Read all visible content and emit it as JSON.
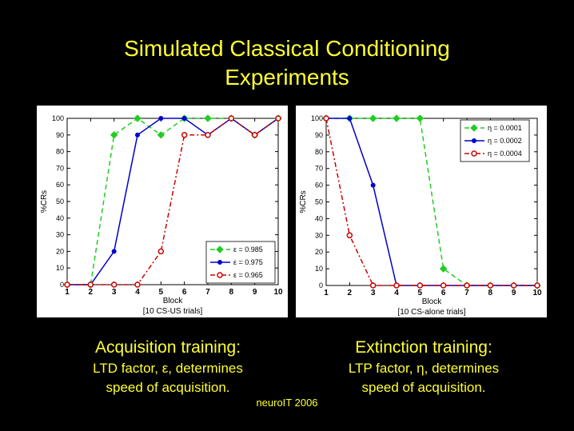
{
  "title_line1": "Simulated Classical Conditioning",
  "title_line2": "Experiments",
  "captions": {
    "left_heading": "Acquisition training:",
    "left_line1": "LTD factor, ε, determines",
    "left_line2": "speed of acquisition.",
    "right_heading": "Extinction training:",
    "right_line1": "LTP factor, η, determines",
    "right_line2": "speed of acquisition."
  },
  "footer": "neuroIT 2006",
  "chart_data": [
    {
      "type": "line",
      "ylabel": "%CRs",
      "xlabel": "Block",
      "xlabel2": "[10 CS-US trials]",
      "x": [
        1,
        2,
        3,
        4,
        5,
        6,
        7,
        8,
        9,
        10
      ],
      "xlim": [
        1,
        10
      ],
      "ylim": [
        0,
        100
      ],
      "yticks": [
        0,
        10,
        20,
        30,
        40,
        50,
        60,
        70,
        80,
        90,
        100
      ],
      "legend_position": "lower-right",
      "series": [
        {
          "name": "ε = 0.985",
          "color": "#22cc22",
          "marker": "diamond",
          "dash": "6,4",
          "values": [
            0,
            0,
            90,
            100,
            90,
            100,
            100,
            100,
            90,
            100
          ]
        },
        {
          "name": "ε = 0.975",
          "color": "#0000cc",
          "marker": "dot",
          "dash": "",
          "values": [
            0,
            0,
            20,
            90,
            100,
            100,
            90,
            100,
            90,
            100
          ]
        },
        {
          "name": "ε = 0.965",
          "color": "#cc0000",
          "marker": "circle",
          "dash": "6,3,2,3",
          "values": [
            0,
            0,
            0,
            0,
            20,
            90,
            90,
            100,
            90,
            100
          ]
        }
      ]
    },
    {
      "type": "line",
      "ylabel": "%CRs",
      "xlabel": "Block",
      "xlabel2": "[10 CS-alone trials]",
      "x": [
        1,
        2,
        3,
        4,
        5,
        6,
        7,
        8,
        9,
        10
      ],
      "xlim": [
        1,
        10
      ],
      "ylim": [
        0,
        100
      ],
      "yticks": [
        0,
        10,
        20,
        30,
        40,
        50,
        60,
        70,
        80,
        90,
        100
      ],
      "legend_position": "upper-right",
      "series": [
        {
          "name": "η = 0.0001",
          "color": "#22cc22",
          "marker": "diamond",
          "dash": "6,4",
          "values": [
            100,
            100,
            100,
            100,
            100,
            10,
            0,
            0,
            0,
            0
          ]
        },
        {
          "name": "η = 0.0002",
          "color": "#0000cc",
          "marker": "dot",
          "dash": "",
          "values": [
            100,
            100,
            60,
            0,
            0,
            0,
            0,
            0,
            0,
            0
          ]
        },
        {
          "name": "η = 0.0004",
          "color": "#cc0000",
          "marker": "circle",
          "dash": "6,3,2,3",
          "values": [
            100,
            30,
            0,
            0,
            0,
            0,
            0,
            0,
            0,
            0
          ]
        }
      ]
    }
  ]
}
